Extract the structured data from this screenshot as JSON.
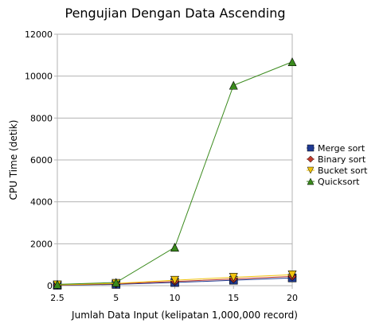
{
  "chart_data": {
    "type": "line",
    "title": "Pengujian Dengan Data Ascending",
    "xlabel": "Jumlah Data Input (kelipatan 1,000,000 record)",
    "ylabel": "CPU Time (detik)",
    "categories": [
      "2.5",
      "5",
      "10",
      "15",
      "20"
    ],
    "ylim": [
      0,
      12000
    ],
    "yticks": [
      "0",
      "2000",
      "4000",
      "6000",
      "8000",
      "10000",
      "12000"
    ],
    "grid": "horizontal",
    "legend_position": "right",
    "series": [
      {
        "name": "Merge sort",
        "values": [
          20,
          60,
          150,
          260,
          370
        ],
        "color": "#1f3a93",
        "marker": "square"
      },
      {
        "name": "Binary sort",
        "values": [
          30,
          90,
          200,
          320,
          440
        ],
        "color": "#c0392b",
        "marker": "diamond"
      },
      {
        "name": "Bucket sort",
        "values": [
          40,
          110,
          260,
          400,
          520
        ],
        "color": "#f1c40f",
        "marker": "triangle-down"
      },
      {
        "name": "Quicksort",
        "values": [
          60,
          150,
          1830,
          9560,
          10680
        ],
        "color": "#3a8a1c",
        "marker": "triangle-up"
      }
    ]
  }
}
